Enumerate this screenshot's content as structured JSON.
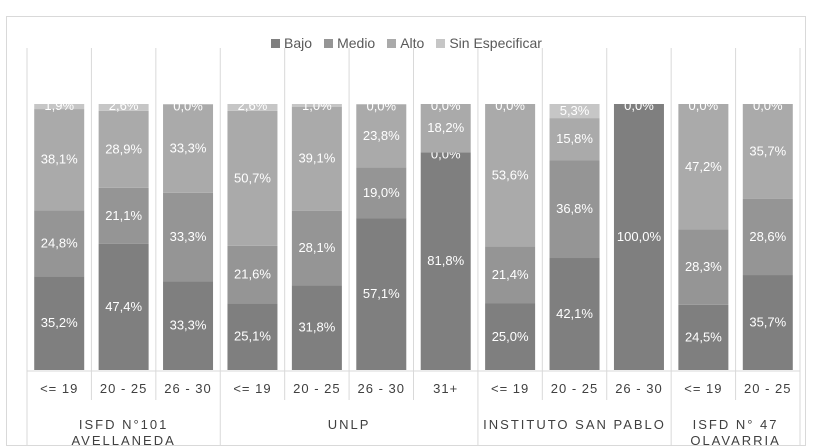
{
  "chart_data": {
    "type": "bar",
    "stacked": true,
    "percent": true,
    "legend_position": "top",
    "grid": false,
    "ylim": [
      0,
      100
    ],
    "series_meta": [
      {
        "name": "Bajo",
        "color": "#7f7f7f"
      },
      {
        "name": "Medio",
        "color": "#959595"
      },
      {
        "name": "Alto",
        "color": "#aaaaaa"
      },
      {
        "name": "Sin Especificar",
        "color": "#c6c6c6"
      }
    ],
    "groups": [
      {
        "label_lines": [
          "ISFD N°101",
          "AVELLANEDA"
        ],
        "bars": [
          {
            "category": "<= 19",
            "values": [
              35.2,
              24.8,
              38.1,
              1.9
            ],
            "labels": [
              "35,2%",
              "24,8%",
              "38,1%",
              "1,9%"
            ]
          },
          {
            "category": "20 - 25",
            "values": [
              47.4,
              21.1,
              28.9,
              2.6
            ],
            "labels": [
              "47,4%",
              "21,1%",
              "28,9%",
              "2,6%"
            ]
          },
          {
            "category": "26 - 30",
            "values": [
              33.3,
              33.3,
              33.3,
              0.0
            ],
            "labels": [
              "33,3%",
              "33,3%",
              "33,3%",
              "0,0%"
            ]
          }
        ]
      },
      {
        "label_lines": [
          "UNLP"
        ],
        "bars": [
          {
            "category": "<= 19",
            "values": [
              25.1,
              21.6,
              50.7,
              2.6
            ],
            "labels": [
              "25,1%",
              "21,6%",
              "50,7%",
              "2,6%"
            ]
          },
          {
            "category": "20 - 25",
            "values": [
              31.8,
              28.1,
              39.1,
              1.0
            ],
            "labels": [
              "31,8%",
              "28,1%",
              "39,1%",
              "1,0%"
            ]
          },
          {
            "category": "26 - 30",
            "values": [
              57.1,
              19.0,
              23.8,
              0.0
            ],
            "labels": [
              "57,1%",
              "19,0%",
              "23,8%",
              "0,0%"
            ]
          },
          {
            "category": "31+",
            "values": [
              81.8,
              0.0,
              18.2,
              0.0
            ],
            "labels": [
              "81,8%",
              "0,0%",
              "18,2%",
              "0,0%"
            ]
          }
        ]
      },
      {
        "label_lines": [
          "INSTITUTO SAN PABLO"
        ],
        "bars": [
          {
            "category": "<= 19",
            "values": [
              25.0,
              21.4,
              53.6,
              0.0
            ],
            "labels": [
              "25,0%",
              "21,4%",
              "53,6%",
              "0,0%"
            ]
          },
          {
            "category": "20 - 25",
            "values": [
              42.1,
              36.8,
              15.8,
              5.3
            ],
            "labels": [
              "42,1%",
              "36,8%",
              "15,8%",
              "5,3%"
            ]
          },
          {
            "category": "26 - 30",
            "values": [
              100.0,
              0.0,
              0.0,
              0.0
            ],
            "labels": [
              "100,0%",
              "",
              "",
              "0,0%"
            ]
          }
        ]
      },
      {
        "label_lines": [
          "ISFD N° 47",
          "OLAVARRIA"
        ],
        "bars": [
          {
            "category": "<= 19",
            "values": [
              24.5,
              28.3,
              47.2,
              0.0
            ],
            "labels": [
              "24,5%",
              "28,3%",
              "47,2%",
              "0,0%"
            ]
          },
          {
            "category": "20 - 25",
            "values": [
              35.7,
              28.6,
              35.7,
              0.0
            ],
            "labels": [
              "35,7%",
              "28,6%",
              "35,7%",
              "0,0%"
            ]
          }
        ]
      }
    ]
  }
}
